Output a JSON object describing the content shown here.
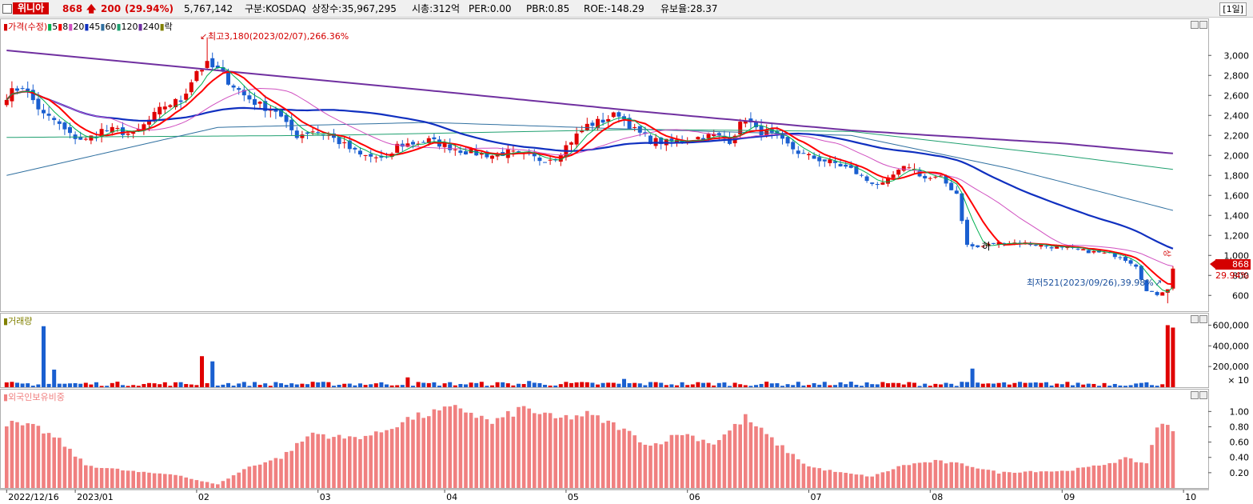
{
  "header": {
    "stock_name": "위니아",
    "price": "868",
    "change": "200",
    "change_rate": "(29.94%)",
    "volume": "5,767,142",
    "market": "구분:KOSDAQ",
    "shares": "상장수:35,967,295",
    "market_cap": "시총:312억",
    "per": "PER:0.00",
    "pbr": "PBR:0.85",
    "roe": "ROE:-148.29",
    "retention": "유보율:28.37",
    "period": "[1일]"
  },
  "colors": {
    "up": "#e00000",
    "down": "#1a5fd0",
    "ma5": "#00b050",
    "ma8": "#ff0000",
    "ma20": "#d050c0",
    "ma45": "#1030c0",
    "ma60": "#3070a0",
    "ma120": "#20a070",
    "ma240": "#7030a0",
    "foreign": "#f08080"
  },
  "price_panel": {
    "legend_title": "가격(수정)",
    "legend_items": [
      {
        "label": "5",
        "color": "#00b050"
      },
      {
        "label": "8",
        "color": "#ff0000"
      },
      {
        "label": "20",
        "color": "#d050c0"
      },
      {
        "label": "45",
        "color": "#1030c0"
      },
      {
        "label": "60",
        "color": "#3070a0"
      },
      {
        "label": "120",
        "color": "#20a070"
      },
      {
        "label": "240",
        "color": "#7030a0"
      },
      {
        "label": "락",
        "color": "#808000"
      }
    ],
    "high_annotation": "최고3,180(2023/02/07),266.36%",
    "low_annotation": "최저521(2023/09/26),39.98%",
    "ha_label": "하",
    "sang_label": "상",
    "current_price_tag": "868",
    "current_rate_tag": "29.94%"
  },
  "volume_panel": {
    "legend_title": "거래량",
    "unit": "× 10"
  },
  "foreign_panel": {
    "legend_title": "외국인보유비중"
  },
  "chart_data": [
    {
      "type": "candlestick",
      "name": "price",
      "ylim": [
        450,
        3250
      ],
      "yticks": [
        600,
        800,
        1000,
        1200,
        1400,
        1600,
        1800,
        2000,
        2200,
        2400,
        2600,
        2800,
        3000
      ],
      "ytick_labels": [
        "600",
        "800",
        "1,000",
        "1,200",
        "1,400",
        "1,600",
        "1,800",
        "2,000",
        "2,200",
        "2,400",
        "2,600",
        "2,800",
        "3,000"
      ],
      "x_labels": [
        "2022/12/16",
        "2023/01",
        "02",
        "03",
        "04",
        "05",
        "06",
        "07",
        "08",
        "09",
        "10"
      ],
      "x_label_index": [
        0,
        13,
        36,
        59,
        83,
        106,
        129,
        152,
        175,
        200,
        223
      ],
      "num_bars": 222,
      "anchors": [
        [
          0,
          2600
        ],
        [
          3,
          2700
        ],
        [
          5,
          2550
        ],
        [
          7,
          2400
        ],
        [
          9,
          2350
        ],
        [
          12,
          2200
        ],
        [
          15,
          2150
        ],
        [
          18,
          2250
        ],
        [
          21,
          2250
        ],
        [
          24,
          2200
        ],
        [
          27,
          2350
        ],
        [
          30,
          2500
        ],
        [
          33,
          2550
        ],
        [
          36,
          2850
        ],
        [
          38,
          2900
        ],
        [
          40,
          2850
        ],
        [
          42,
          2750
        ],
        [
          45,
          2600
        ],
        [
          48,
          2500
        ],
        [
          51,
          2450
        ],
        [
          53,
          2300
        ],
        [
          55,
          2200
        ],
        [
          58,
          2250
        ],
        [
          61,
          2200
        ],
        [
          64,
          2100
        ],
        [
          67,
          2000
        ],
        [
          70,
          1980
        ],
        [
          72,
          1950
        ],
        [
          74,
          2100
        ],
        [
          77,
          2120
        ],
        [
          80,
          2150
        ],
        [
          83,
          2100
        ],
        [
          86,
          2050
        ],
        [
          89,
          2020
        ],
        [
          92,
          2000
        ],
        [
          95,
          2030
        ],
        [
          98,
          2000
        ],
        [
          101,
          1960
        ],
        [
          104,
          1980
        ],
        [
          107,
          2150
        ],
        [
          110,
          2300
        ],
        [
          113,
          2350
        ],
        [
          116,
          2420
        ],
        [
          119,
          2250
        ],
        [
          122,
          2150
        ],
        [
          125,
          2130
        ],
        [
          128,
          2150
        ],
        [
          131,
          2180
        ],
        [
          134,
          2200
        ],
        [
          137,
          2150
        ],
        [
          140,
          2380
        ],
        [
          142,
          2250
        ],
        [
          145,
          2200
        ],
        [
          148,
          2100
        ],
        [
          151,
          2000
        ],
        [
          154,
          1960
        ],
        [
          157,
          1920
        ],
        [
          160,
          1860
        ],
        [
          163,
          1750
        ],
        [
          166,
          1700
        ],
        [
          168,
          1800
        ],
        [
          171,
          1900
        ],
        [
          174,
          1770
        ],
        [
          177,
          1770
        ],
        [
          180,
          1620
        ],
        [
          182,
          1100
        ],
        [
          184,
          1080
        ],
        [
          187,
          1120
        ],
        [
          190,
          1130
        ],
        [
          193,
          1120
        ],
        [
          196,
          1100
        ],
        [
          199,
          1080
        ],
        [
          202,
          1060
        ],
        [
          205,
          1040
        ],
        [
          208,
          1020
        ],
        [
          211,
          990
        ],
        [
          214,
          900
        ],
        [
          216,
          640
        ],
        [
          218,
          610
        ],
        [
          220,
          668
        ],
        [
          221,
          868
        ]
      ],
      "high": {
        "value": 3180,
        "date": "2023/02/07",
        "index": 38
      },
      "low": {
        "value": 521,
        "date": "2023/09/26",
        "index": 220
      },
      "last_close": 868,
      "moving_averages": [
        5,
        8,
        20,
        45,
        60,
        120,
        240
      ],
      "ma240_path": [
        [
          0,
          3050
        ],
        [
          40,
          2850
        ],
        [
          80,
          2650
        ],
        [
          120,
          2440
        ],
        [
          160,
          2250
        ],
        [
          200,
          2120
        ],
        [
          221,
          2020
        ]
      ],
      "ma120_path": [
        [
          0,
          2180
        ],
        [
          60,
          2200
        ],
        [
          120,
          2260
        ],
        [
          160,
          2240
        ],
        [
          200,
          2000
        ],
        [
          221,
          1860
        ]
      ],
      "ma60_path": [
        [
          0,
          1800
        ],
        [
          40,
          2280
        ],
        [
          80,
          2330
        ],
        [
          120,
          2260
        ],
        [
          160,
          2200
        ],
        [
          190,
          1870
        ],
        [
          221,
          1450
        ]
      ]
    },
    {
      "type": "bar",
      "name": "volume",
      "unit": "× 10",
      "ylim": [
        0,
        650000
      ],
      "yticks": [
        200000,
        400000,
        600000
      ],
      "ytick_labels": [
        "200,000",
        "400,000",
        "600,000"
      ],
      "spikes": [
        [
          7,
          590000
        ],
        [
          9,
          170000
        ],
        [
          37,
          300000
        ],
        [
          39,
          250000
        ],
        [
          76,
          95000
        ],
        [
          99,
          60000
        ],
        [
          117,
          80000
        ],
        [
          122,
          50000
        ],
        [
          183,
          180000
        ],
        [
          220,
          600000
        ],
        [
          221,
          576714
        ]
      ],
      "baseline": 30000
    },
    {
      "type": "bar",
      "name": "foreign_ownership",
      "ylim": [
        0,
        1.15
      ],
      "yticks": [
        0.2,
        0.4,
        0.6,
        0.8,
        1.0
      ],
      "ytick_labels": [
        "0.20",
        "0.40",
        "0.60",
        "0.80",
        "1.00"
      ],
      "anchors": [
        [
          0,
          0.85
        ],
        [
          6,
          0.78
        ],
        [
          10,
          0.62
        ],
        [
          15,
          0.3
        ],
        [
          20,
          0.25
        ],
        [
          26,
          0.2
        ],
        [
          32,
          0.18
        ],
        [
          36,
          0.1
        ],
        [
          40,
          0.05
        ],
        [
          46,
          0.28
        ],
        [
          52,
          0.4
        ],
        [
          58,
          0.72
        ],
        [
          64,
          0.65
        ],
        [
          70,
          0.7
        ],
        [
          76,
          0.9
        ],
        [
          82,
          1.0
        ],
        [
          86,
          1.05
        ],
        [
          92,
          0.85
        ],
        [
          98,
          1.05
        ],
        [
          104,
          0.9
        ],
        [
          110,
          0.96
        ],
        [
          116,
          0.8
        ],
        [
          122,
          0.55
        ],
        [
          128,
          0.72
        ],
        [
          134,
          0.58
        ],
        [
          140,
          0.92
        ],
        [
          146,
          0.58
        ],
        [
          152,
          0.28
        ],
        [
          158,
          0.2
        ],
        [
          164,
          0.15
        ],
        [
          170,
          0.3
        ],
        [
          176,
          0.35
        ],
        [
          182,
          0.3
        ],
        [
          188,
          0.2
        ],
        [
          194,
          0.22
        ],
        [
          200,
          0.22
        ],
        [
          206,
          0.28
        ],
        [
          212,
          0.38
        ],
        [
          216,
          0.32
        ],
        [
          218,
          0.82
        ],
        [
          220,
          0.8
        ],
        [
          221,
          0.75
        ]
      ]
    }
  ]
}
